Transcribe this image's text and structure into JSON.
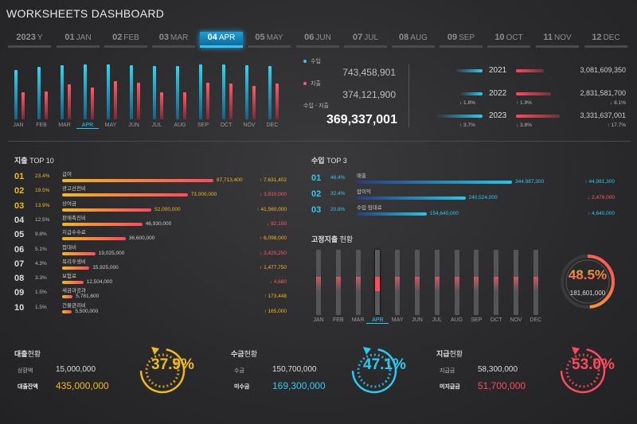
{
  "header": {
    "title_bold": "WORKSHEETS",
    "title_rest": " DASHBOARD"
  },
  "tabs": [
    {
      "num": "2023",
      "label": "Y"
    },
    {
      "num": "01",
      "label": "JAN"
    },
    {
      "num": "02",
      "label": "FEB"
    },
    {
      "num": "03",
      "label": "MAR"
    },
    {
      "num": "04",
      "label": "APR"
    },
    {
      "num": "05",
      "label": "MAY"
    },
    {
      "num": "06",
      "label": "JUN"
    },
    {
      "num": "07",
      "label": "JUL"
    },
    {
      "num": "08",
      "label": "AUG"
    },
    {
      "num": "09",
      "label": "SEP"
    },
    {
      "num": "10",
      "label": "OCT"
    },
    {
      "num": "11",
      "label": "NOV"
    },
    {
      "num": "12",
      "label": "DEC"
    }
  ],
  "months": [
    "JAN",
    "FEB",
    "MAR",
    "APR",
    "MAY",
    "JUN",
    "JUL",
    "AUG",
    "SEP",
    "OCT",
    "NOV",
    "DEC"
  ],
  "monthly_chart": {
    "income": [
      0.78,
      0.82,
      0.85,
      0.86,
      0.86,
      0.85,
      0.84,
      0.84,
      0.86,
      0.86,
      0.85,
      0.84
    ],
    "expense": [
      0.42,
      0.44,
      0.55,
      0.5,
      0.6,
      0.58,
      0.42,
      0.43,
      0.58,
      0.56,
      0.52,
      0.56
    ]
  },
  "summary": {
    "income_label": "수입",
    "income_value": "743,458,901",
    "expense_label": "지출",
    "expense_value": "374,121,900",
    "net_label": "수입 - 지출",
    "net_value": "369,337,001"
  },
  "years": [
    {
      "year": "2021",
      "value": "3,081,609,350",
      "left_delta": "",
      "right_delta": "",
      "left_bar": 0.55,
      "right_bar": 0.6
    },
    {
      "year": "2022",
      "value": "2,831,581,700",
      "left_delta": "↓ 1.8%",
      "right_delta": "↑ 1.9%",
      "total_delta": "↓ 8.1%",
      "left_bar": 0.45,
      "right_bar": 0.75
    },
    {
      "year": "2023",
      "value": "3,331,637,001",
      "left_delta": "↑ 3.7%",
      "right_delta": "↓ 3.8%",
      "total_delta": "↑ 17.7%",
      "left_bar": 0.92,
      "right_bar": 0.95
    }
  ],
  "expense_top": {
    "title_bold": "지출",
    "title_rest": " TOP 10",
    "items": [
      {
        "rank": "01",
        "pct": "23.4%",
        "name": "급여",
        "value": "87,713,400",
        "change": "↑ 7,631,402",
        "dir": "up",
        "ratio": 1.0
      },
      {
        "rank": "02",
        "pct": "19.5%",
        "name": "광고선전비",
        "value": "73,000,000",
        "change": "↓ 3,810,000",
        "dir": "down",
        "ratio": 0.83
      },
      {
        "rank": "03",
        "pct": "13.9%",
        "name": "상여금",
        "value": "52,000,000",
        "change": "↑ 41,560,000",
        "dir": "up",
        "ratio": 0.59
      },
      {
        "rank": "04",
        "pct": "12.5%",
        "name": "판매촉진비",
        "value": "46,930,000",
        "change": "↓ 92,100",
        "dir": "down",
        "ratio": 0.53
      },
      {
        "rank": "05",
        "pct": "9.8%",
        "name": "지급수수료",
        "value": "36,600,000",
        "change": "↑ 6,098,000",
        "dir": "up",
        "ratio": 0.42
      },
      {
        "rank": "06",
        "pct": "5.1%",
        "name": "접대비",
        "value": "19,025,000",
        "change": "↓ 3,429,250",
        "dir": "down",
        "ratio": 0.22
      },
      {
        "rank": "07",
        "pct": "4.3%",
        "name": "복리후생비",
        "value": "15,925,000",
        "change": "↑ 1,477,750",
        "dir": "up",
        "ratio": 0.18
      },
      {
        "rank": "08",
        "pct": "3.3%",
        "name": "보험료",
        "value": "12,504,000",
        "change": "↓ 4,680",
        "dir": "down",
        "ratio": 0.14
      },
      {
        "rank": "09",
        "pct": "1.5%",
        "name": "세금과공과",
        "value": "5,781,600",
        "change": "↑ 173,448",
        "dir": "up",
        "ratio": 0.07
      },
      {
        "rank": "10",
        "pct": "1.5%",
        "name": "건물관리비",
        "value": "5,500,000",
        "change": "↑ 165,000",
        "dir": "up",
        "ratio": 0.065
      }
    ]
  },
  "income_top": {
    "title_bold": "수입",
    "title_rest": " TOP 3",
    "items": [
      {
        "rank": "01",
        "pct": "46.4%",
        "name": "매출",
        "value": "344,987,300",
        "change": "↑ 44,981,300",
        "dir": "upc",
        "ratio": 1.0
      },
      {
        "rank": "02",
        "pct": "32.4%",
        "name": "잡이익",
        "value": "240,524,000",
        "change": "↓ 2,478,000",
        "dir": "down",
        "ratio": 0.7
      },
      {
        "rank": "03",
        "pct": "20.8%",
        "name": "수입 임대료",
        "value": "154,640,000",
        "change": "↑ 4,640,000",
        "dir": "upc",
        "ratio": 0.45
      }
    ]
  },
  "fixed": {
    "title_bold": "고정지출",
    "title_rest": " 현황",
    "gauge_pct": "48.5%",
    "gauge_value": "181,601,000",
    "gauge_ratio": 0.485
  },
  "footer": [
    {
      "title_bold": "대출",
      "title_rest": "현황",
      "l1": "상환액",
      "v1": "15,000,000",
      "l2": "대출잔액",
      "v2": "435,000,000",
      "pct": "37.9%",
      "ratio": 0.379,
      "color": "#f0b91f"
    },
    {
      "title_bold": "수금",
      "title_rest": "현황",
      "l1": "수금",
      "v1": "150,700,000",
      "l2": "미수금",
      "v2": "169,300,000",
      "pct": "47.1%",
      "ratio": 0.471,
      "color": "#2ec9f0"
    },
    {
      "title_bold": "지급",
      "title_rest": "현황",
      "l1": "지급금",
      "v1": "58,300,000",
      "l2": "미지급금",
      "v2": "51,700,000",
      "pct": "53.0%",
      "ratio": 0.53,
      "color": "#ff4a5e"
    }
  ]
}
